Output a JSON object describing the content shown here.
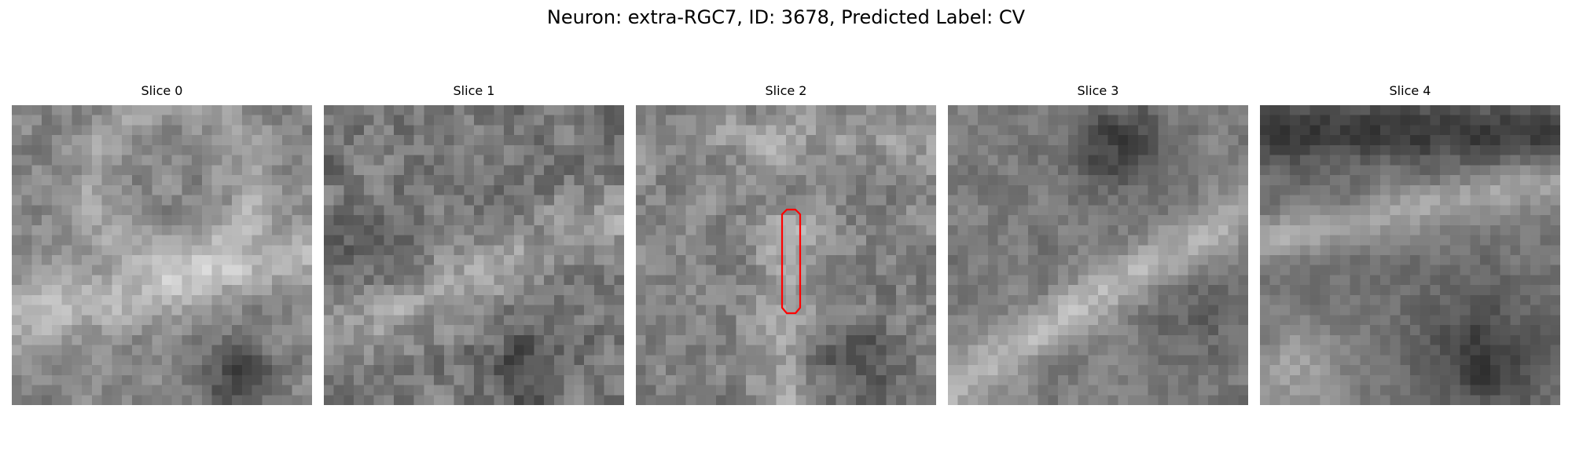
{
  "figure": {
    "title": "Neuron: extra-RGC7, ID: 3678, Predicted Label: CV"
  },
  "panels": [
    {
      "title": "Slice 0",
      "has_outline": false
    },
    {
      "title": "Slice 1",
      "has_outline": false
    },
    {
      "title": "Slice 2",
      "has_outline": true
    },
    {
      "title": "Slice 3",
      "has_outline": false
    },
    {
      "title": "Slice 4",
      "has_outline": false
    }
  ],
  "outline_color": "#ff0000"
}
